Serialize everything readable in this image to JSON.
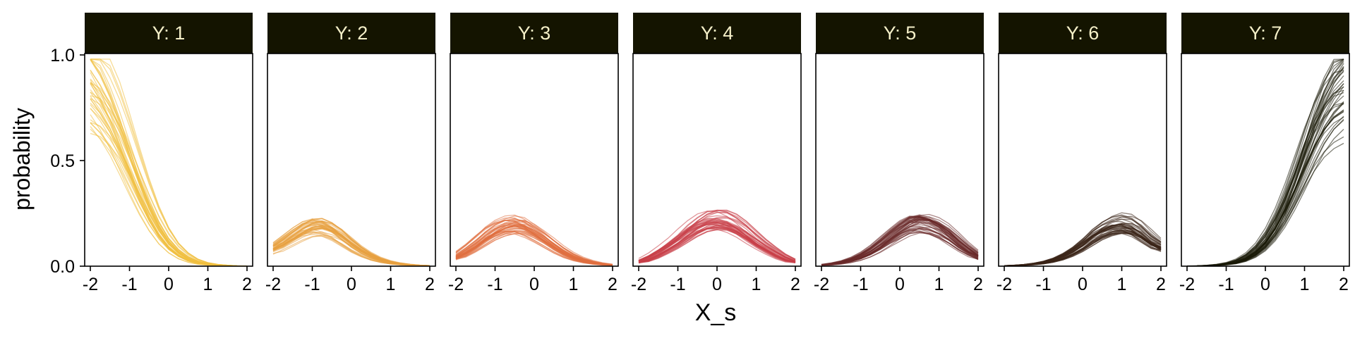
{
  "chart_data": {
    "type": "line",
    "layout": "faceted-small-multiples",
    "xlabel": "X_s",
    "ylabel": "probability",
    "xlim": [
      -2,
      2
    ],
    "ylim": [
      0,
      1.2
    ],
    "xticks": [
      "-2",
      "-1",
      "0",
      "1",
      "2"
    ],
    "yticks": [
      "0.0",
      "0.5",
      "1.0"
    ],
    "yticks_values": [
      0,
      0.5,
      1.0
    ],
    "xticks_values": [
      -2,
      -1,
      0,
      1,
      2
    ],
    "strip_color": "#141400",
    "strip_text_color": "#f5f0c8",
    "x_grid": [
      -2,
      -1.75,
      -1.5,
      -1.25,
      -1,
      -0.75,
      -0.5,
      -0.25,
      0,
      0.25,
      0.5,
      0.75,
      1,
      1.25,
      1.5,
      1.75,
      2
    ],
    "panels": [
      {
        "label": "Y: 1",
        "color": "#f0c040",
        "n_draws": 40,
        "mean_curve": [
          0.86,
          0.8,
          0.72,
          0.62,
          0.5,
          0.38,
          0.27,
          0.18,
          0.11,
          0.065,
          0.035,
          0.018,
          0.009,
          0.005,
          0.002,
          0.001,
          0.0005
        ]
      },
      {
        "label": "Y: 2",
        "color": "#e8a040",
        "n_draws": 40,
        "mean_curve": [
          0.08,
          0.11,
          0.14,
          0.17,
          0.19,
          0.19,
          0.17,
          0.14,
          0.1,
          0.07,
          0.045,
          0.028,
          0.017,
          0.01,
          0.006,
          0.003,
          0.002
        ]
      },
      {
        "label": "Y: 3",
        "color": "#e07040",
        "n_draws": 40,
        "mean_curve": [
          0.04,
          0.07,
          0.1,
          0.14,
          0.17,
          0.19,
          0.2,
          0.19,
          0.16,
          0.13,
          0.095,
          0.065,
          0.042,
          0.026,
          0.016,
          0.009,
          0.005
        ]
      },
      {
        "label": "Y: 4",
        "color": "#c84048",
        "n_draws": 40,
        "mean_curve": [
          0.02,
          0.035,
          0.06,
          0.09,
          0.12,
          0.16,
          0.19,
          0.215,
          0.22,
          0.215,
          0.19,
          0.16,
          0.12,
          0.09,
          0.06,
          0.035,
          0.02
        ]
      },
      {
        "label": "Y: 5",
        "color": "#6a2a2a",
        "n_draws": 40,
        "mean_curve": [
          0.005,
          0.009,
          0.016,
          0.026,
          0.042,
          0.065,
          0.095,
          0.13,
          0.16,
          0.19,
          0.2,
          0.19,
          0.17,
          0.14,
          0.1,
          0.07,
          0.04
        ]
      },
      {
        "label": "Y: 6",
        "color": "#3a2418",
        "n_draws": 40,
        "mean_curve": [
          0.002,
          0.003,
          0.006,
          0.01,
          0.017,
          0.028,
          0.045,
          0.07,
          0.1,
          0.14,
          0.17,
          0.19,
          0.2,
          0.19,
          0.16,
          0.12,
          0.09
        ]
      },
      {
        "label": "Y: 7",
        "color": "#1a1a08",
        "n_draws": 40,
        "mean_curve": [
          0.0005,
          0.001,
          0.002,
          0.005,
          0.009,
          0.018,
          0.035,
          0.065,
          0.11,
          0.18,
          0.27,
          0.38,
          0.5,
          0.62,
          0.72,
          0.79,
          0.84
        ]
      }
    ]
  }
}
